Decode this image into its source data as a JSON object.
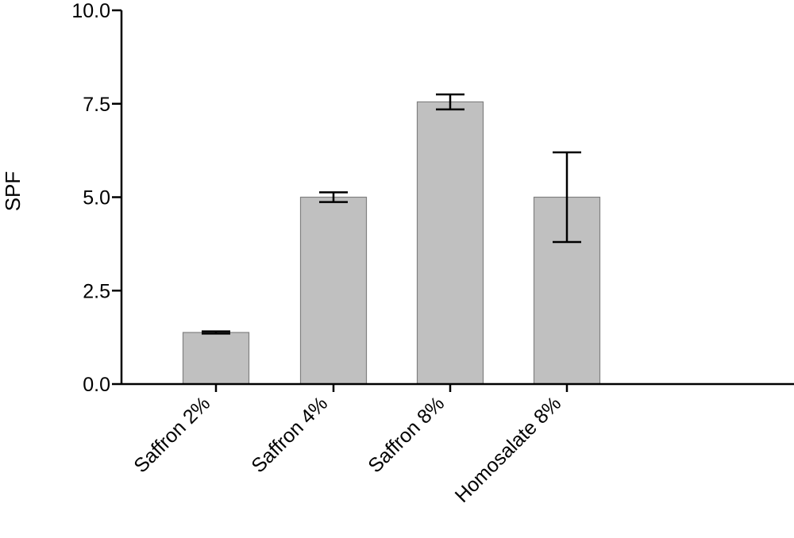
{
  "chart_data": {
    "type": "bar",
    "title": "",
    "xlabel": "",
    "ylabel": "SPF",
    "ylim": [
      0,
      10
    ],
    "yticks": [
      0,
      2.5,
      5,
      7.5,
      10
    ],
    "ytick_labels": [
      "0.0",
      "2.5",
      "5.0",
      "7.5",
      "10.0"
    ],
    "categories": [
      "Saffron 2%",
      "Saffron 4%",
      "Saffron 8%",
      "Homosalate 8%"
    ],
    "values": [
      1.38,
      5.0,
      7.55,
      5.0
    ],
    "error": [
      0.03,
      0.13,
      0.2,
      1.2
    ],
    "grid": false,
    "bar_color": "#c0c0c0",
    "bar_edge_color": "#808080",
    "axis_color": "#000000"
  }
}
